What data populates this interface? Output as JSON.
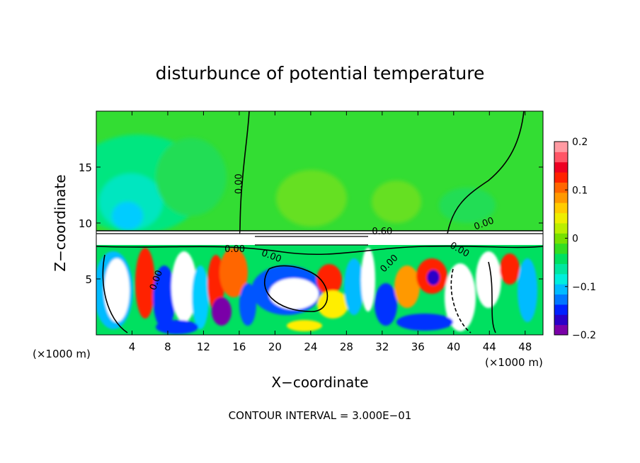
{
  "chart_data": {
    "type": "heatmap",
    "title": "disturbunce of potential temperature",
    "xlabel": "X−coordinate",
    "ylabel": "Z−coordinate",
    "x_unit_label_left": "(×1000 m)",
    "x_unit_label_right": "(×1000 m)",
    "xlim": [
      0,
      50
    ],
    "ylim": [
      0,
      20
    ],
    "x_ticks": [
      {
        "value": 4,
        "label": "4"
      },
      {
        "value": 8,
        "label": "8"
      },
      {
        "value": 12,
        "label": "12"
      },
      {
        "value": 16,
        "label": "16"
      },
      {
        "value": 20,
        "label": "20"
      },
      {
        "value": 24,
        "label": "24"
      },
      {
        "value": 28,
        "label": "28"
      },
      {
        "value": 32,
        "label": "32"
      },
      {
        "value": 36,
        "label": "36"
      },
      {
        "value": 40,
        "label": "40"
      },
      {
        "value": 44,
        "label": "44"
      },
      {
        "value": 48,
        "label": "48"
      }
    ],
    "y_ticks": [
      {
        "value": 5,
        "label": "5"
      },
      {
        "value": 10,
        "label": "10"
      },
      {
        "value": 15,
        "label": "15"
      }
    ],
    "colorbar": {
      "min": -0.2,
      "max": 0.2,
      "ticks": [
        {
          "value": 0.2,
          "label": "0.2"
        },
        {
          "value": 0.1,
          "label": "0.1"
        },
        {
          "value": 0,
          "label": "0"
        },
        {
          "value": -0.1,
          "label": "−0.1"
        },
        {
          "value": -0.2,
          "label": "−0.2"
        }
      ],
      "colors": [
        "#7a00a8",
        "#2a00c8",
        "#0022ff",
        "#0077ff",
        "#00bbff",
        "#00eedd",
        "#00e6a0",
        "#00e060",
        "#33dd22",
        "#77e000",
        "#bbee00",
        "#eeee00",
        "#ffcc00",
        "#ff9900",
        "#ff6600",
        "#ff2200",
        "#ee0022",
        "#ff5566",
        "#ff9aa2"
      ]
    },
    "contour_labels": [
      {
        "text": "0.00",
        "x": 16.3,
        "z": 13.5,
        "rotate": -90
      },
      {
        "text": "0.00",
        "x": 43.5,
        "z": 9.7,
        "rotate": -20
      },
      {
        "text": "0.00",
        "x": 15.5,
        "z": 7.4,
        "rotate": 0
      },
      {
        "text": "0.00",
        "x": 19.5,
        "z": 6.8,
        "rotate": 20
      },
      {
        "text": "0.00",
        "x": 7.0,
        "z": 4.8,
        "rotate": -70
      },
      {
        "text": "0.00",
        "x": 33.0,
        "z": 6.2,
        "rotate": -45
      },
      {
        "text": "0.00",
        "x": 40.5,
        "z": 7.4,
        "rotate": 30
      },
      {
        "text": "0.60",
        "x": 32.0,
        "z": 9.0,
        "rotate": 0
      }
    ],
    "footnote": "CONTOUR INTERVAL = 3.000E−01"
  }
}
